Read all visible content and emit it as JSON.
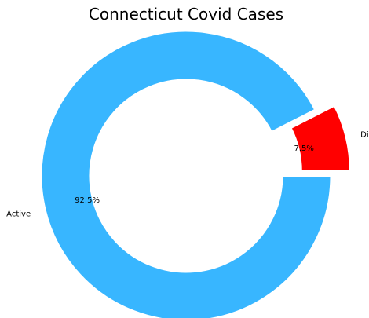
{
  "chart_data": {
    "type": "pie",
    "title": "Connecticut Covid  Cases",
    "donut": true,
    "slices": [
      {
        "label": "Active",
        "value": 92.5,
        "pct_label": "92.5%",
        "color": "#38b6ff",
        "exploded": false
      },
      {
        "label": "Died",
        "value": 7.5,
        "pct_label": "7.5%",
        "color": "#ff0000",
        "exploded": true
      }
    ]
  }
}
